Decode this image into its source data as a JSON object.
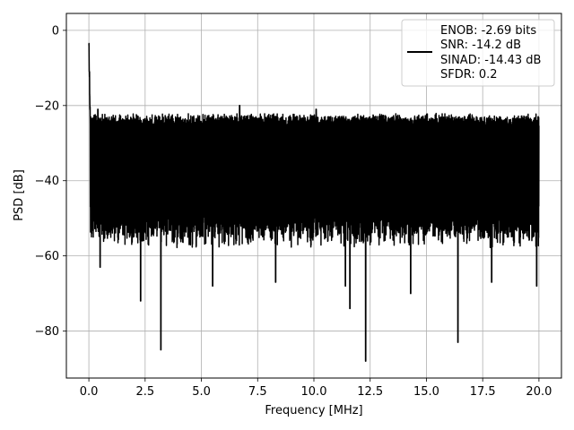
{
  "chart_data": {
    "type": "line",
    "title": "",
    "xlabel": "Frequency [MHz]",
    "ylabel": "PSD [dB]",
    "xlim": [
      -1.0,
      21.0
    ],
    "ylim": [
      -92.5,
      4.5
    ],
    "xticks": [
      0.0,
      2.5,
      5.0,
      7.5,
      10.0,
      12.5,
      15.0,
      17.5,
      20.0
    ],
    "xtick_labels": [
      "0.0",
      "2.5",
      "5.0",
      "7.5",
      "10.0",
      "12.5",
      "15.0",
      "17.5",
      "20.0"
    ],
    "yticks": [
      0,
      -20,
      -40,
      -60,
      -80
    ],
    "ytick_labels": [
      "0",
      "−20",
      "−40",
      "−60",
      "−80"
    ],
    "grid": true,
    "legend_position": "top-right",
    "legend_lines": [
      "ENOB: -2.69 bits",
      "SNR: -14.2 dB",
      "SINAD: -14.43 dB",
      "SFDR: 0.2"
    ],
    "series": [
      {
        "color": "#000000",
        "x_range": [
          0.0,
          20.0
        ],
        "peak": {
          "x": 0.0,
          "y": 0.0
        },
        "noise_floor_upper": -24,
        "noise_floor_lower": -50,
        "notable_dips": [
          {
            "x": 0.5,
            "y": -63
          },
          {
            "x": 2.3,
            "y": -72
          },
          {
            "x": 3.2,
            "y": -85
          },
          {
            "x": 5.5,
            "y": -68
          },
          {
            "x": 8.3,
            "y": -67
          },
          {
            "x": 11.4,
            "y": -68
          },
          {
            "x": 11.6,
            "y": -74
          },
          {
            "x": 12.3,
            "y": -88
          },
          {
            "x": 14.3,
            "y": -70
          },
          {
            "x": 16.4,
            "y": -83
          },
          {
            "x": 17.9,
            "y": -67
          },
          {
            "x": 19.9,
            "y": -68
          }
        ],
        "notable_peaks": [
          {
            "x": 0.4,
            "y": -21
          },
          {
            "x": 6.7,
            "y": -20
          },
          {
            "x": 10.1,
            "y": -21
          }
        ]
      }
    ]
  }
}
